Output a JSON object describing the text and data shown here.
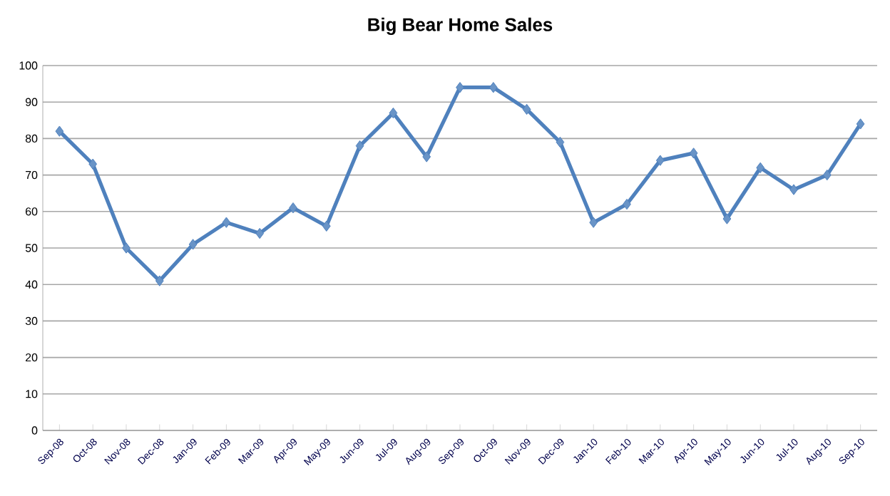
{
  "chart_data": {
    "type": "line",
    "title": "Big Bear Home Sales",
    "categories": [
      "Sep-08",
      "Oct-08",
      "Nov-08",
      "Dec-08",
      "Jan-09",
      "Feb-09",
      "Mar-09",
      "Apr-09",
      "May-09",
      "Jun-09",
      "Jul-09",
      "Aug-09",
      "Sep-09",
      "Oct-09",
      "Nov-09",
      "Dec-09",
      "Jan-10",
      "Feb-10",
      "Mar-10",
      "Apr-10",
      "May-10",
      "Jun-10",
      "Jul-10",
      "Aug-10",
      "Sep-10"
    ],
    "series": [
      {
        "color": "#4f81bd",
        "values": [
          82,
          73,
          50,
          41,
          51,
          57,
          54,
          61,
          56,
          78,
          87,
          75,
          94,
          94,
          88,
          79,
          57,
          62,
          74,
          76,
          58,
          72,
          66,
          70,
          84
        ]
      }
    ],
    "ylim": [
      0,
      100
    ],
    "yticks": [
      0,
      10,
      20,
      30,
      40,
      50,
      60,
      70,
      80,
      90,
      100
    ],
    "grid": "y",
    "marker": "diamond",
    "line_style": "solid"
  }
}
